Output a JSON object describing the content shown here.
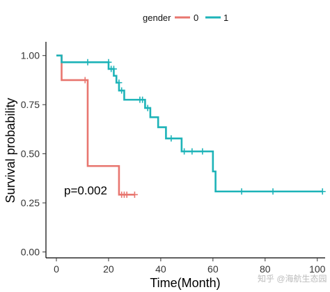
{
  "chart_data": {
    "type": "line",
    "subtype": "kaplan-meier",
    "xlabel": "Time(Month)",
    "ylabel": "Survival probability",
    "xlim": [
      -4,
      103
    ],
    "ylim": [
      -0.03,
      1.07
    ],
    "x_ticks": [
      0,
      20,
      40,
      60,
      80,
      100
    ],
    "y_ticks": [
      0.0,
      0.25,
      0.5,
      0.75,
      1.0
    ],
    "y_tick_labels": [
      "0.00",
      "0.25",
      "0.50",
      "0.75",
      "1.00"
    ],
    "legend": {
      "title": "gender",
      "position": "top",
      "entries": [
        {
          "label": "0",
          "color": "#E8766F"
        },
        {
          "label": "1",
          "color": "#1DB3B8"
        }
      ]
    },
    "series": [
      {
        "name": "0",
        "color": "#E8766F",
        "steps": [
          {
            "x": 0,
            "y": 1.0
          },
          {
            "x": 2,
            "y": 0.875
          },
          {
            "x": 12,
            "y": 0.4375
          },
          {
            "x": 24,
            "y": 0.2917
          },
          {
            "x": 30,
            "y": 0.2917
          }
        ],
        "censor_marks": [
          {
            "x": 11,
            "y": 0.875
          },
          {
            "x": 25,
            "y": 0.2917
          },
          {
            "x": 26,
            "y": 0.2917
          },
          {
            "x": 27,
            "y": 0.2917
          },
          {
            "x": 30,
            "y": 0.2917
          }
        ]
      },
      {
        "name": "1",
        "color": "#1DB3B8",
        "steps": [
          {
            "x": 0,
            "y": 1.0
          },
          {
            "x": 2,
            "y": 0.966
          },
          {
            "x": 20,
            "y": 0.932
          },
          {
            "x": 22,
            "y": 0.897
          },
          {
            "x": 23,
            "y": 0.862
          },
          {
            "x": 24,
            "y": 0.822
          },
          {
            "x": 26,
            "y": 0.775
          },
          {
            "x": 34,
            "y": 0.733
          },
          {
            "x": 36,
            "y": 0.686
          },
          {
            "x": 39,
            "y": 0.635
          },
          {
            "x": 42,
            "y": 0.578
          },
          {
            "x": 48,
            "y": 0.512
          },
          {
            "x": 60,
            "y": 0.41
          },
          {
            "x": 61,
            "y": 0.308
          },
          {
            "x": 102,
            "y": 0.308
          }
        ],
        "censor_marks": [
          {
            "x": 12,
            "y": 0.966
          },
          {
            "x": 20,
            "y": 0.966
          },
          {
            "x": 21,
            "y": 0.932
          },
          {
            "x": 22,
            "y": 0.932
          },
          {
            "x": 24,
            "y": 0.862
          },
          {
            "x": 25,
            "y": 0.822
          },
          {
            "x": 32,
            "y": 0.775
          },
          {
            "x": 33,
            "y": 0.775
          },
          {
            "x": 35,
            "y": 0.733
          },
          {
            "x": 44,
            "y": 0.578
          },
          {
            "x": 49,
            "y": 0.512
          },
          {
            "x": 52,
            "y": 0.512
          },
          {
            "x": 56,
            "y": 0.512
          },
          {
            "x": 71,
            "y": 0.308
          },
          {
            "x": 83,
            "y": 0.308
          },
          {
            "x": 102,
            "y": 0.308
          }
        ]
      }
    ],
    "annotations": [
      {
        "text": "p=0.002",
        "x": 3,
        "y": 0.2
      }
    ],
    "grid": false
  },
  "watermark": {
    "text": "知乎 @海航生态园"
  }
}
